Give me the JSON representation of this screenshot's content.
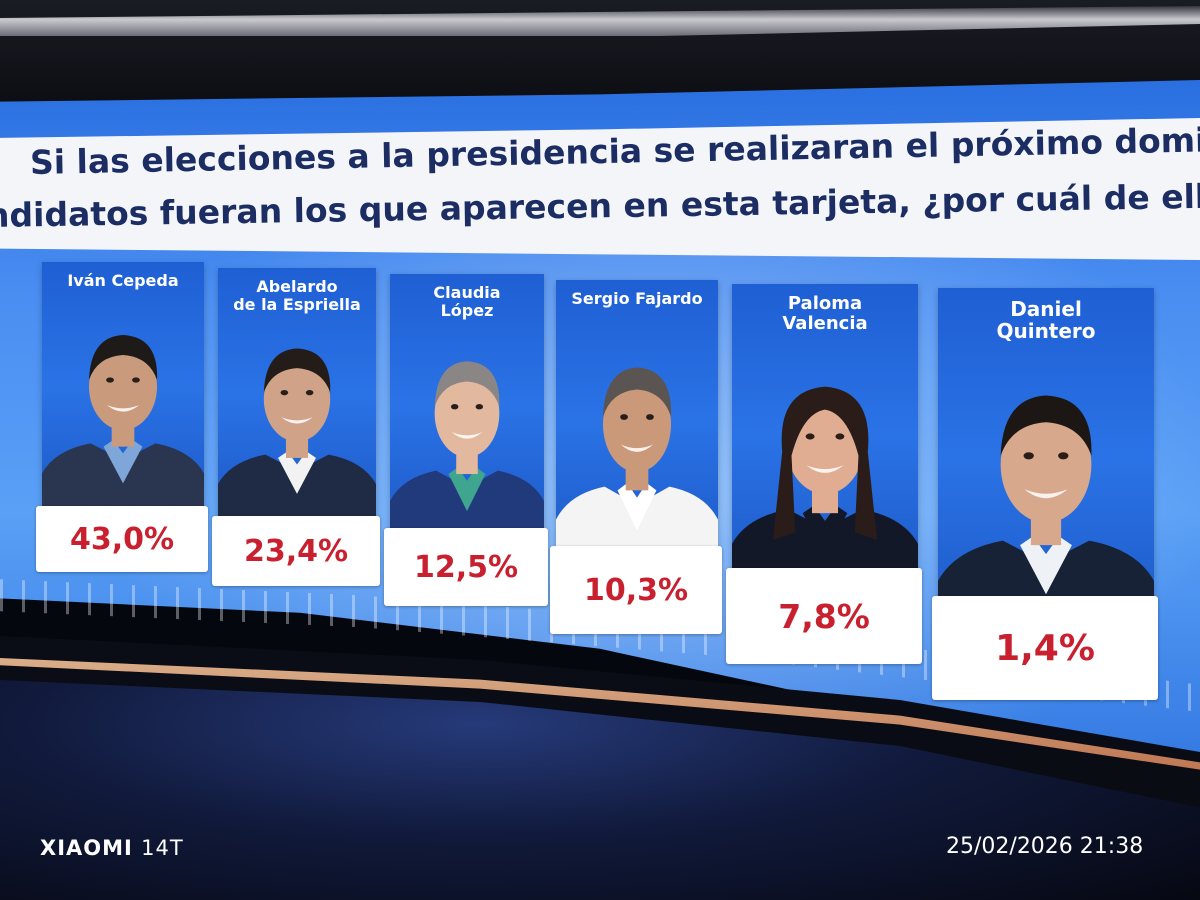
{
  "question": {
    "line1": "Si las elecciones a la presidencia se realizaran el próximo domingo,",
    "line2": "ndidatos fueran los que aparecen en esta tarjeta, ¿por cuál de ellos vota"
  },
  "candidates": [
    {
      "name": "Iván Cepeda",
      "percent": "43,0%",
      "value": 43.0
    },
    {
      "name": "Abelardo\nde la Espriella",
      "percent": "23,4%",
      "value": 23.4
    },
    {
      "name": "Claudia\nLópez",
      "percent": "12,5%",
      "value": 12.5
    },
    {
      "name": "Sergio Fajardo",
      "percent": "10,3%",
      "value": 10.3
    },
    {
      "name": "Paloma\nValencia",
      "percent": "7,8%",
      "value": 7.8
    },
    {
      "name": "Daniel\nQuintero",
      "percent": "1,4%",
      "value": 1.4
    }
  ],
  "watermark": {
    "brand": "XIAOMI",
    "model": "14T",
    "datetime": "25/02/2026 21:38"
  },
  "colors": {
    "banner_text": "#1b2d62",
    "card_blue": "#2a73e6",
    "percent_red": "#c8202e"
  }
}
